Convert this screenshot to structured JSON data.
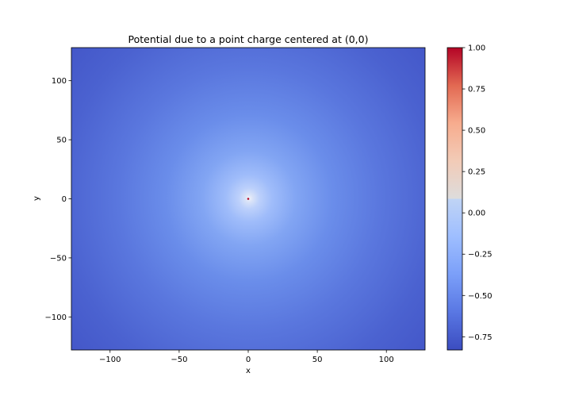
{
  "chart_data": {
    "type": "heatmap",
    "title": "Potential due to a point charge centered at (0,0)",
    "xlabel": "x",
    "ylabel": "y",
    "xlim": [
      -128,
      128
    ],
    "ylim": [
      -128,
      128
    ],
    "x_ticks": [
      -100,
      -50,
      0,
      50,
      100
    ],
    "y_ticks": [
      -100,
      -50,
      0,
      50,
      100
    ],
    "x_tick_labels": [
      "−100",
      "−50",
      "0",
      "50",
      "100"
    ],
    "y_tick_labels": [
      "−100",
      "−50",
      "0",
      "50",
      "100"
    ],
    "charge_position": [
      0,
      0
    ],
    "colormap": "coolwarm",
    "colorbar": {
      "range": [
        -0.83,
        1.0
      ],
      "ticks": [
        1.0,
        0.75,
        0.5,
        0.25,
        0.0,
        -0.25,
        -0.5,
        -0.75
      ],
      "tick_labels": [
        "1.00",
        "0.75",
        "0.50",
        "0.25",
        "0.00",
        "−0.25",
        "−0.50",
        "−0.75"
      ]
    },
    "grid": false
  }
}
